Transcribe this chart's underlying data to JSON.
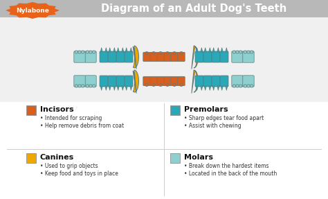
{
  "title": "Diagram of an Adult Dog's Teeth",
  "bg_color": "#f0f0f0",
  "header_bg": "#b8b8b8",
  "header_text_color": "#ffffff",
  "nylabone_bg": "#e8621a",
  "nylabone_text": "Nylabone",
  "colors": {
    "incisor": "#d95f1e",
    "canine": "#f0a800",
    "premolar": "#2aa8b8",
    "molar": "#8ed0d0"
  },
  "legend": [
    {
      "name": "Incisors",
      "color": "#d95f1e",
      "col": 0.08,
      "row": 0.42,
      "bullets": [
        "Intended for scraping",
        "Help remove debris from coat"
      ]
    },
    {
      "name": "Premolars",
      "color": "#2aa8b8",
      "col": 0.52,
      "row": 0.42,
      "bullets": [
        "Sharp edges tear food apart",
        "Assist with chewing"
      ]
    },
    {
      "name": "Canines",
      "color": "#f0a800",
      "col": 0.08,
      "row": 0.18,
      "bullets": [
        "Used to grip objects",
        "Keep food and toys in place"
      ]
    },
    {
      "name": "Molars",
      "color": "#8ed0d0",
      "col": 0.52,
      "row": 0.18,
      "bullets": [
        "Break down the hardest items",
        "Located in the back of the mouth"
      ]
    }
  ]
}
